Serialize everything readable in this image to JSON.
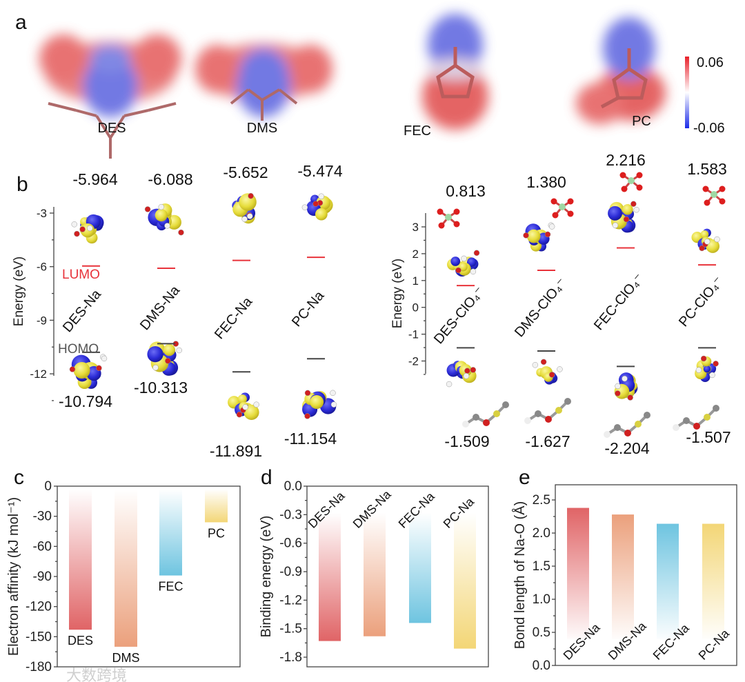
{
  "panel_labels": {
    "a": "a",
    "b": "b",
    "c": "c",
    "d": "d",
    "e": "e"
  },
  "panel_a": {
    "molecules": [
      "DES",
      "DMS",
      "FEC",
      "PC"
    ],
    "colorbar": {
      "max": "0.06",
      "min": "-0.06",
      "max_color": "#e8202a",
      "mid_color": "#ffffff",
      "min_color": "#1b2be8"
    }
  },
  "chart_data": [
    {
      "id": "b_left",
      "type": "energy-level",
      "ylabel": "Energy (eV)",
      "yticks": [
        -3,
        -6,
        -9,
        -12
      ],
      "categories": [
        "DES-Na",
        "DMS-Na",
        "FEC-Na",
        "PC-Na"
      ],
      "lumo": [
        -5.964,
        -6.088,
        -5.652,
        -5.474
      ],
      "homo": [
        -10.794,
        -10.313,
        -11.891,
        -11.154
      ],
      "lumo_label": "LUMO",
      "homo_label": "HOMO",
      "lumo_color": "#e8323a",
      "homo_color": "#444444"
    },
    {
      "id": "b_right",
      "type": "energy-level",
      "ylabel": "Energy (eV)",
      "yticks": [
        3,
        2,
        1,
        0,
        -1,
        -2
      ],
      "categories": [
        "DES-ClO₄⁻",
        "DMS-ClO₄⁻",
        "FEC-ClO₄⁻",
        "PC-ClO₄⁻"
      ],
      "lumo": [
        0.813,
        1.38,
        2.216,
        1.583
      ],
      "homo": [
        -1.509,
        -1.627,
        -2.204,
        -1.507
      ],
      "lumo_color": "#e8323a",
      "homo_color": "#444444"
    },
    {
      "id": "c",
      "type": "bar",
      "ylabel": "Electron affinity (kJ mol⁻¹)",
      "ylim": [
        -180,
        0
      ],
      "yticks": [
        0,
        -30,
        -60,
        -90,
        -120,
        -150,
        -180
      ],
      "categories": [
        "DES",
        "DMS",
        "FEC",
        "PC"
      ],
      "values": [
        -143,
        -160,
        -89,
        -36
      ],
      "colors": [
        "#e06466",
        "#eba07c",
        "#6ec4e0",
        "#f3d676"
      ]
    },
    {
      "id": "d",
      "type": "bar",
      "ylabel": "Binding energy (eV)",
      "ylim": [
        -1.9,
        0
      ],
      "yticks": [
        0.0,
        -0.3,
        -0.6,
        -0.9,
        -1.2,
        -1.5,
        -1.8
      ],
      "categories": [
        "DES-Na",
        "DMS-Na",
        "FEC-Na",
        "PC-Na"
      ],
      "values": [
        -1.63,
        -1.58,
        -1.44,
        -1.71
      ],
      "colors": [
        "#e06466",
        "#eba07c",
        "#6ec4e0",
        "#f3d676"
      ]
    },
    {
      "id": "e",
      "type": "bar",
      "ylabel": "Bond length of Na-O (Å)",
      "ylim": [
        0,
        2.75
      ],
      "yticks": [
        0.0,
        0.5,
        1.0,
        1.5,
        2.0,
        2.5
      ],
      "categories": [
        "DES-Na",
        "DMS-Na",
        "FEC-Na",
        "PC-Na"
      ],
      "values": [
        2.38,
        2.28,
        2.14,
        2.14
      ],
      "colors": [
        "#e06466",
        "#eba07c",
        "#6ec4e0",
        "#f3d676"
      ]
    }
  ],
  "watermark": "大数跨境"
}
